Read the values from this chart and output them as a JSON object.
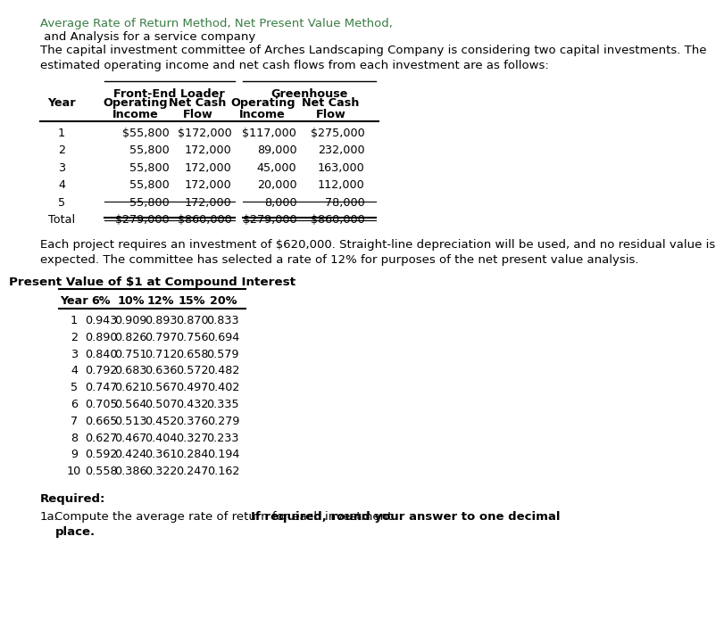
{
  "title_green": "Average Rate of Return Method, Net Present Value Method,",
  "title_black": " and Analysis for a service company",
  "intro_text1": "The capital investment committee of Arches Landscaping Company is considering two capital investments. The",
  "intro_text2": "estimated operating income and net cash flows from each investment are as follows:",
  "group1": "Front-End Loader",
  "group2": "Greenhouse",
  "col_header_row1": [
    "",
    "Operating",
    "Net Cash",
    "Operating",
    "Net Cash"
  ],
  "col_header_row2": [
    "Year",
    "Income",
    "Flow",
    "Income",
    "Flow"
  ],
  "table1_data": [
    [
      "1",
      "$55,800",
      "$172,000",
      "$117,000",
      "$275,000"
    ],
    [
      "2",
      "55,800",
      "172,000",
      "89,000",
      "232,000"
    ],
    [
      "3",
      "55,800",
      "172,000",
      "45,000",
      "163,000"
    ],
    [
      "4",
      "55,800",
      "172,000",
      "20,000",
      "112,000"
    ],
    [
      "5",
      "55,800",
      "172,000",
      "8,000",
      "78,000"
    ],
    [
      "Total",
      "$279,000",
      "$860,000",
      "$279,000",
      "$860,000"
    ]
  ],
  "middle_text1": "Each project requires an investment of $620,000. Straight-line depreciation will be used, and no residual value is",
  "middle_text2": "expected. The committee has selected a rate of 12% for purposes of the net present value analysis.",
  "table2_title": "Present Value of $1 at Compound Interest",
  "table2_col_headers": [
    "Year",
    "6%",
    "10%",
    "12%",
    "15%",
    "20%"
  ],
  "table2_data": [
    [
      "1",
      "0.943",
      "0.909",
      "0.893",
      "0.870",
      "0.833"
    ],
    [
      "2",
      "0.890",
      "0.826",
      "0.797",
      "0.756",
      "0.694"
    ],
    [
      "3",
      "0.840",
      "0.751",
      "0.712",
      "0.658",
      "0.579"
    ],
    [
      "4",
      "0.792",
      "0.683",
      "0.636",
      "0.572",
      "0.482"
    ],
    [
      "5",
      "0.747",
      "0.621",
      "0.567",
      "0.497",
      "0.402"
    ],
    [
      "6",
      "0.705",
      "0.564",
      "0.507",
      "0.432",
      "0.335"
    ],
    [
      "7",
      "0.665",
      "0.513",
      "0.452",
      "0.376",
      "0.279"
    ],
    [
      "8",
      "0.627",
      "0.467",
      "0.404",
      "0.327",
      "0.233"
    ],
    [
      "9",
      "0.592",
      "0.424",
      "0.361",
      "0.284",
      "0.194"
    ],
    [
      "10",
      "0.558",
      "0.386",
      "0.322",
      "0.247",
      "0.162"
    ]
  ],
  "required_label": "Required:",
  "q1a_normal": "1a.",
  "q1a_body_normal": "  Compute the average rate of return for each investment. ",
  "q1a_bold": "If required, round your answer to one decimal",
  "q1a_bold2": "place.",
  "bg_color": "#ffffff",
  "text_color": "#000000",
  "green_color": "#3a7d44",
  "fs": 9.5,
  "tfs": 9.2
}
